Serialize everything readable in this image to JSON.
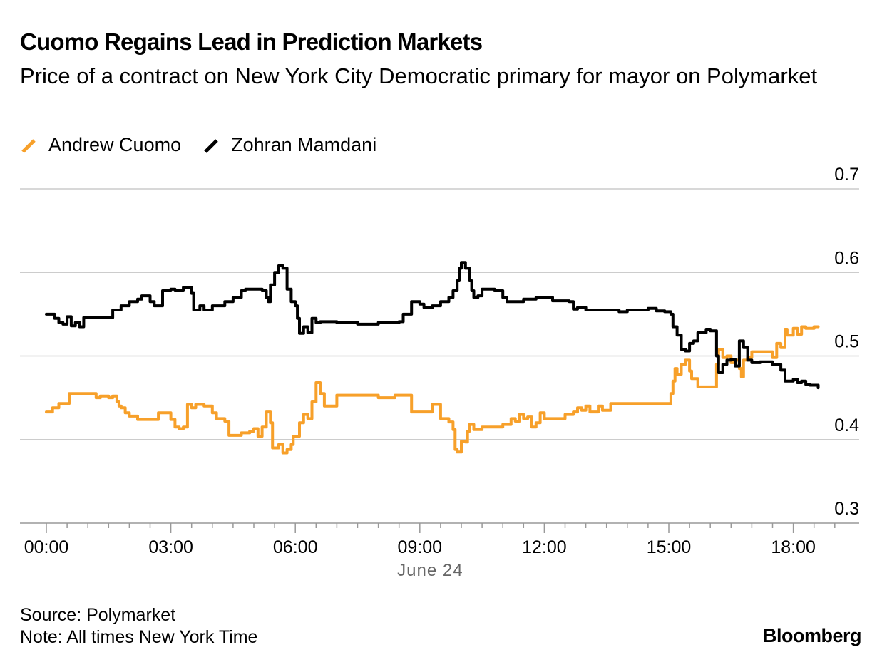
{
  "header": {
    "title": "Cuomo Regains Lead in Prediction Markets",
    "subtitle": "Price of a contract on New York City Democratic primary for mayor on Polymarket"
  },
  "footer": {
    "source": "Source: Polymarket",
    "note": "Note: All times New York Time",
    "brand": "Bloomberg"
  },
  "colors": {
    "cuomo": "#f7a02a",
    "mamdani": "#000000",
    "grid": "#cccccc",
    "axis": "#999999",
    "date_label": "#666666"
  },
  "chart_data": {
    "type": "line",
    "title": "Cuomo Regains Lead in Prediction Markets",
    "subtitle": "Price of a contract on New York City Democratic primary for mayor on Polymarket",
    "x_unit": "hours",
    "x_date_label": "June 24",
    "xlim": [
      0,
      19.1
    ],
    "ylim": [
      0.3,
      0.7
    ],
    "yticks": [
      0.3,
      0.4,
      0.5,
      0.6,
      0.7
    ],
    "ytick_labels": [
      "0.3",
      "0.4",
      "0.5",
      "0.6",
      "0.7"
    ],
    "xticks": [
      0,
      3,
      6,
      9,
      12,
      15,
      18
    ],
    "xtick_labels": [
      "00:00",
      "03:00",
      "06:00",
      "09:00",
      "12:00",
      "15:00",
      "18:00"
    ],
    "grid": true,
    "legend_position": "top-left",
    "series": [
      {
        "name": "Andrew Cuomo",
        "color": "#f7a02a",
        "x": [
          0,
          0.15,
          0.3,
          0.5,
          0.55,
          0.9,
          1.2,
          1.3,
          1.5,
          1.6,
          1.7,
          1.75,
          1.8,
          1.9,
          2.0,
          2.2,
          2.6,
          2.7,
          3.0,
          3.1,
          3.2,
          3.3,
          3.4,
          3.5,
          3.6,
          3.8,
          4.0,
          4.1,
          4.3,
          4.4,
          4.6,
          4.7,
          4.9,
          5.0,
          5.1,
          5.2,
          5.3,
          5.4,
          5.45,
          5.6,
          5.7,
          5.8,
          5.9,
          5.95,
          6.1,
          6.2,
          6.3,
          6.4,
          6.5,
          6.6,
          6.7,
          7.0,
          7.8,
          8.0,
          8.4,
          8.5,
          8.8,
          9.0,
          9.2,
          9.3,
          9.5,
          9.7,
          9.8,
          9.85,
          9.9,
          10.0,
          10.1,
          10.15,
          10.2,
          10.3,
          10.5,
          10.9,
          11.0,
          11.2,
          11.3,
          11.4,
          11.5,
          11.6,
          11.7,
          11.8,
          11.9,
          12.0,
          12.2,
          12.4,
          12.5,
          12.6,
          12.7,
          12.8,
          12.9,
          13.0,
          13.1,
          13.3,
          13.4,
          13.6,
          14.0,
          14.5,
          14.8,
          15.0,
          15.05,
          15.1,
          15.15,
          15.2,
          15.3,
          15.4,
          15.5,
          15.55,
          15.7,
          15.9,
          16.1,
          16.15,
          16.2,
          16.3,
          16.4,
          16.5,
          16.6,
          16.7,
          16.75,
          16.8,
          16.9,
          17.0,
          17.2,
          17.4,
          17.5,
          17.6,
          17.7,
          17.8,
          17.85,
          18.0,
          18.1,
          18.2,
          18.3,
          18.5,
          18.6
        ],
        "y": [
          0.433,
          0.438,
          0.443,
          0.443,
          0.455,
          0.455,
          0.45,
          0.452,
          0.45,
          0.452,
          0.445,
          0.44,
          0.438,
          0.432,
          0.428,
          0.424,
          0.424,
          0.432,
          0.424,
          0.415,
          0.413,
          0.415,
          0.442,
          0.438,
          0.442,
          0.44,
          0.432,
          0.425,
          0.422,
          0.405,
          0.405,
          0.408,
          0.41,
          0.413,
          0.404,
          0.415,
          0.433,
          0.42,
          0.39,
          0.394,
          0.384,
          0.388,
          0.394,
          0.404,
          0.42,
          0.43,
          0.425,
          0.445,
          0.468,
          0.455,
          0.44,
          0.453,
          0.453,
          0.45,
          0.453,
          0.453,
          0.433,
          0.433,
          0.433,
          0.442,
          0.425,
          0.421,
          0.412,
          0.388,
          0.385,
          0.398,
          0.397,
          0.41,
          0.418,
          0.412,
          0.415,
          0.415,
          0.418,
          0.425,
          0.422,
          0.43,
          0.425,
          0.427,
          0.415,
          0.42,
          0.432,
          0.425,
          0.425,
          0.425,
          0.43,
          0.43,
          0.433,
          0.438,
          0.435,
          0.44,
          0.433,
          0.44,
          0.435,
          0.443,
          0.443,
          0.443,
          0.443,
          0.443,
          0.455,
          0.47,
          0.485,
          0.478,
          0.49,
          0.495,
          0.482,
          0.473,
          0.463,
          0.463,
          0.463,
          0.49,
          0.508,
          0.498,
          0.5,
          0.492,
          0.495,
          0.485,
          0.475,
          0.495,
          0.498,
          0.505,
          0.505,
          0.505,
          0.498,
          0.515,
          0.51,
          0.532,
          0.525,
          0.533,
          0.526,
          0.535,
          0.533,
          0.535,
          0.535
        ]
      },
      {
        "name": "Zohran Mamdani",
        "color": "#000000",
        "x": [
          0,
          0.2,
          0.3,
          0.4,
          0.5,
          0.6,
          0.7,
          0.8,
          0.9,
          1.0,
          1.5,
          1.6,
          1.8,
          2.0,
          2.2,
          2.3,
          2.5,
          2.6,
          2.8,
          3.0,
          3.1,
          3.3,
          3.5,
          3.55,
          3.7,
          3.8,
          4.0,
          4.3,
          4.5,
          4.7,
          4.8,
          5.0,
          5.2,
          5.3,
          5.35,
          5.4,
          5.5,
          5.6,
          5.7,
          5.8,
          5.9,
          6.0,
          6.05,
          6.1,
          6.2,
          6.3,
          6.4,
          6.5,
          6.6,
          7.0,
          7.5,
          8.0,
          8.5,
          8.6,
          8.8,
          9.0,
          9.1,
          9.3,
          9.5,
          9.7,
          9.8,
          9.9,
          9.95,
          10.0,
          10.1,
          10.2,
          10.25,
          10.3,
          10.4,
          10.5,
          10.6,
          10.8,
          11.0,
          11.1,
          11.2,
          11.3,
          11.5,
          11.8,
          12.0,
          12.2,
          12.4,
          12.6,
          12.7,
          12.8,
          13.0,
          13.3,
          13.6,
          13.8,
          14.0,
          14.3,
          14.5,
          14.7,
          14.9,
          15.0,
          15.05,
          15.1,
          15.2,
          15.3,
          15.4,
          15.5,
          15.6,
          15.7,
          15.9,
          16.0,
          16.1,
          16.15,
          16.2,
          16.3,
          16.4,
          16.5,
          16.6,
          16.7,
          16.8,
          16.9,
          17.0,
          17.2,
          17.4,
          17.5,
          17.6,
          17.7,
          17.8,
          18.0,
          18.1,
          18.2,
          18.3,
          18.4,
          18.5,
          18.6
        ],
        "y": [
          0.55,
          0.545,
          0.54,
          0.538,
          0.547,
          0.536,
          0.54,
          0.535,
          0.546,
          0.546,
          0.546,
          0.555,
          0.56,
          0.565,
          0.568,
          0.572,
          0.565,
          0.56,
          0.578,
          0.58,
          0.578,
          0.582,
          0.575,
          0.555,
          0.56,
          0.555,
          0.56,
          0.565,
          0.57,
          0.578,
          0.58,
          0.58,
          0.578,
          0.57,
          0.565,
          0.585,
          0.6,
          0.608,
          0.605,
          0.58,
          0.565,
          0.56,
          0.545,
          0.527,
          0.535,
          0.528,
          0.545,
          0.54,
          0.541,
          0.54,
          0.538,
          0.54,
          0.541,
          0.55,
          0.565,
          0.562,
          0.558,
          0.56,
          0.565,
          0.57,
          0.578,
          0.59,
          0.605,
          0.612,
          0.605,
          0.59,
          0.578,
          0.57,
          0.572,
          0.58,
          0.58,
          0.578,
          0.57,
          0.565,
          0.565,
          0.565,
          0.568,
          0.57,
          0.57,
          0.566,
          0.566,
          0.565,
          0.556,
          0.558,
          0.555,
          0.555,
          0.555,
          0.553,
          0.555,
          0.555,
          0.557,
          0.554,
          0.553,
          0.553,
          0.55,
          0.535,
          0.525,
          0.508,
          0.506,
          0.515,
          0.518,
          0.528,
          0.532,
          0.53,
          0.53,
          0.5,
          0.48,
          0.49,
          0.495,
          0.496,
          0.488,
          0.518,
          0.51,
          0.495,
          0.492,
          0.493,
          0.493,
          0.49,
          0.49,
          0.483,
          0.47,
          0.472,
          0.468,
          0.47,
          0.466,
          0.465,
          0.465,
          0.462
        ]
      }
    ]
  }
}
